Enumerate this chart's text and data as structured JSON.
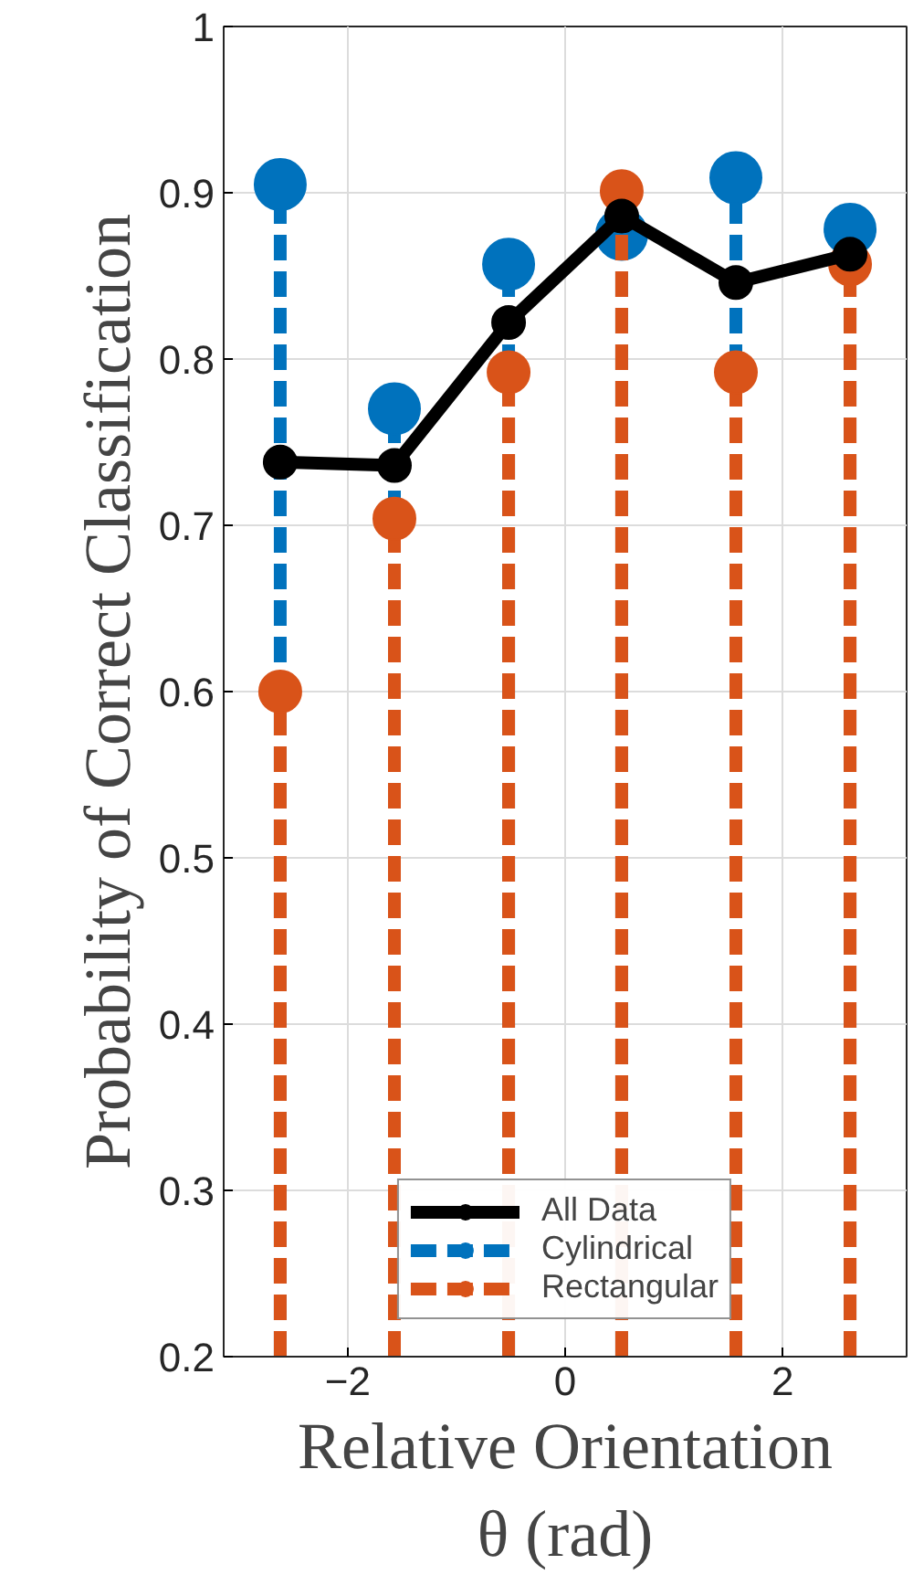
{
  "chart_data": {
    "type": "lollipop",
    "xlabel": "Relative Orientation\nθ (rad)",
    "ylabel": "Probability of Correct Classification",
    "x": [
      -2.62,
      -1.57,
      -0.52,
      0.52,
      1.57,
      2.62
    ],
    "xlim": [
      -3.14,
      3.14
    ],
    "xticks": [
      -2,
      0,
      2
    ],
    "ylim": [
      0.2,
      1
    ],
    "yticks": [
      0.2,
      0.3,
      0.4,
      0.5,
      0.6,
      0.7,
      0.8,
      0.9,
      1
    ],
    "grid": true,
    "legend": "bottom",
    "marker": "circle",
    "line_style": "dashed",
    "series": [
      {
        "name": "Cylindrical",
        "color": "#0072bd",
        "values": [
          0.905,
          0.77,
          0.857,
          0.875,
          0.909,
          0.878
        ]
      },
      {
        "name": "Rectangular",
        "color": "#d95319",
        "values": [
          0.6,
          0.704,
          0.792,
          0.901,
          0.792,
          0.857
        ]
      },
      {
        "name": "All Data",
        "type": "line",
        "line_style": "solid",
        "color": "#000000",
        "values": [
          0.738,
          0.736,
          0.822,
          0.886,
          0.846,
          0.863
        ]
      }
    ]
  }
}
